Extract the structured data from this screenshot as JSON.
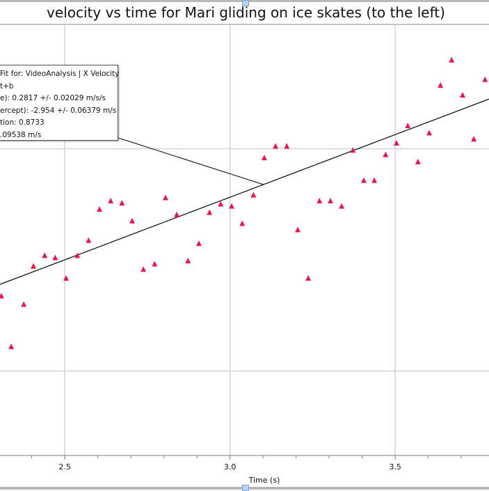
{
  "chart_data": {
    "type": "scatter",
    "title": "velocity vs time for Mari gliding on ice skates (to the left)",
    "xlabel": "Time (s)",
    "ylabel": "",
    "xlim": [
      2.304,
      3.784
    ],
    "ylim": [
      -2.69,
      -1.72
    ],
    "x_ticks": [
      "2.5",
      "3.0",
      "3.5"
    ],
    "x_tick_values": [
      2.5,
      3.0,
      3.5
    ],
    "y_grid_values": [
      -2.0,
      -2.5
    ],
    "grid": true,
    "marker": "triangle",
    "marker_color": "#e8194a",
    "series": [
      {
        "x": [
          2.308,
          2.338,
          2.376,
          2.405,
          2.439,
          2.471,
          2.504,
          2.538,
          2.572,
          2.605,
          2.639,
          2.673,
          2.704,
          2.738,
          2.772,
          2.805,
          2.839,
          2.873,
          2.906,
          2.938,
          2.972,
          3.005,
          3.037,
          3.071,
          3.104,
          3.138,
          3.172,
          3.205,
          3.237,
          3.271,
          3.304,
          3.338,
          3.372,
          3.405,
          3.437,
          3.471,
          3.504,
          3.538,
          3.569,
          3.603,
          3.637,
          3.671,
          3.704,
          3.738,
          3.772
        ],
        "y": [
          -2.332,
          -2.446,
          -2.351,
          -2.265,
          -2.241,
          -2.246,
          -2.292,
          -2.241,
          -2.207,
          -2.137,
          -2.118,
          -2.123,
          -2.163,
          -2.272,
          -2.26,
          -2.111,
          -2.149,
          -2.253,
          -2.214,
          -2.144,
          -2.125,
          -2.13,
          -2.169,
          -2.105,
          -2.021,
          -1.995,
          -1.995,
          -2.183,
          -2.292,
          -2.118,
          -2.118,
          -2.13,
          -2.004,
          -2.072,
          -2.072,
          -2.014,
          -1.988,
          -1.949,
          -2.03,
          -1.965,
          -1.858,
          -1.801,
          -1.88,
          -1.979,
          -1.845
        ]
      }
    ],
    "fit": {
      "slope": 0.2817,
      "intercept": -2.954,
      "color": "#000000"
    },
    "annotation_lines": [
      "Fit for: VideoAnalysis | X Velocity",
      "t+b",
      "e): 0.2817 +/- 0.02029 m/s/s",
      "ercept): -2.954 +/- 0.06379 m/s",
      "tion: 0.8733",
      ".09538 m/s"
    ],
    "annotation_anchor": {
      "x": 3.1,
      "y": -2.08
    }
  }
}
